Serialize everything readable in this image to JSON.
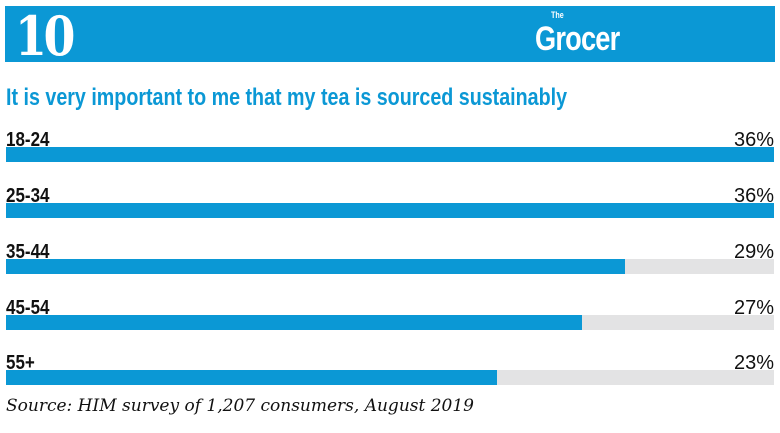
{
  "header": {
    "number": "10",
    "logo_small": "The",
    "logo": "Grocer"
  },
  "colors": {
    "accent": "#0b98d5",
    "track": "#e3e3e4"
  },
  "chart_data": {
    "type": "bar",
    "orientation": "horizontal",
    "title": "It is very important to me that my tea is sourced sustainably",
    "categories": [
      "18-24",
      "25-34",
      "35-44",
      "45-54",
      "55+"
    ],
    "values": [
      36,
      36,
      29,
      27,
      23
    ],
    "value_labels": [
      "36%",
      "36%",
      "29%",
      "27%",
      "23%"
    ],
    "unit": "%",
    "xlim": [
      0,
      36
    ],
    "grid": false,
    "source": "Source: HIM survey of 1,207 consumers, August 2019"
  }
}
